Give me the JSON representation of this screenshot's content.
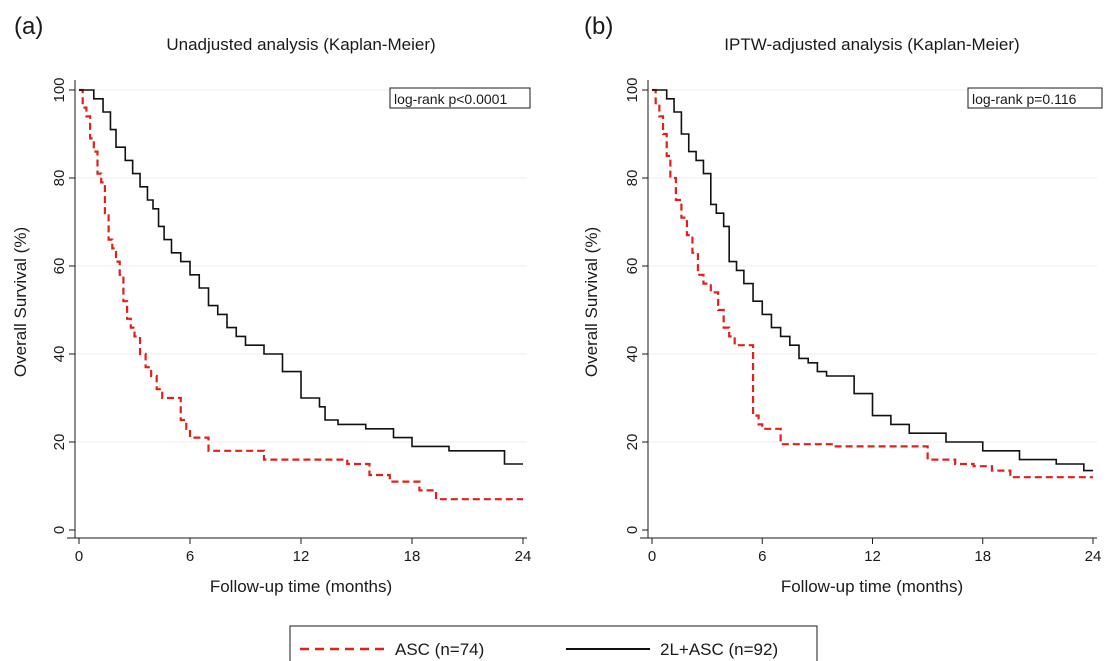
{
  "legend": {
    "items": [
      {
        "label": "ASC (n=74)",
        "color": "#e0201b",
        "dash": "dashed"
      },
      {
        "label": "2L+ASC (n=92)",
        "color": "#111111",
        "dash": "solid"
      }
    ]
  },
  "chart_data": [
    {
      "type": "line",
      "panel": "(a)",
      "title": "Unadjusted analysis (Kaplan-Meier)",
      "xlabel": "Follow-up time (months)",
      "ylabel": "Overall Survival (%)",
      "xlim": [
        0,
        24
      ],
      "ylim": [
        0,
        100
      ],
      "xticks": [
        0,
        6,
        12,
        18,
        24
      ],
      "yticks": [
        0,
        20,
        40,
        60,
        80,
        100
      ],
      "grid": true,
      "annotation": "log-rank p<0.0001",
      "series": [
        {
          "name": "ASC (n=74)",
          "color": "#e0201b",
          "step": true,
          "x": [
            0,
            0.2,
            0.4,
            0.6,
            0.8,
            1.0,
            1.2,
            1.4,
            1.6,
            1.8,
            2.0,
            2.2,
            2.4,
            2.6,
            2.8,
            3.0,
            3.3,
            3.6,
            3.9,
            4.2,
            4.5,
            5.0,
            5.5,
            5.8,
            6.0,
            7.0,
            10.0,
            14.5,
            15.7,
            16.8,
            18.4,
            19.3,
            24
          ],
          "y": [
            100,
            96,
            94,
            89,
            86,
            81,
            79,
            72,
            66,
            64,
            61,
            58,
            52,
            48,
            46,
            44,
            40,
            37,
            35,
            32,
            30,
            30,
            25,
            23,
            21,
            18,
            16,
            15,
            12.5,
            11,
            9,
            7,
            7
          ]
        },
        {
          "name": "2L+ASC (n=92)",
          "color": "#111111",
          "step": true,
          "x": [
            0,
            0.8,
            1.3,
            1.7,
            2.0,
            2.5,
            2.9,
            3.3,
            3.7,
            4.0,
            4.3,
            4.6,
            5.0,
            5.5,
            6.0,
            6.5,
            7.0,
            7.5,
            8.0,
            8.5,
            9.0,
            10.0,
            11.0,
            12.0,
            13.0,
            13.3,
            14.0,
            15.5,
            17.0,
            18.0,
            20.0,
            23.0,
            24
          ],
          "y": [
            100,
            98,
            95,
            91,
            87,
            84,
            81,
            78,
            75,
            73,
            69,
            66,
            63,
            61,
            58,
            55,
            51,
            49,
            46,
            44,
            42,
            40,
            36,
            30,
            28,
            25,
            24,
            23,
            21,
            19,
            18,
            15,
            15
          ]
        }
      ]
    },
    {
      "type": "line",
      "panel": "(b)",
      "title": "IPTW-adjusted analysis (Kaplan-Meier)",
      "xlabel": "Follow-up time (months)",
      "ylabel": "Overall Survival (%)",
      "xlim": [
        0,
        24
      ],
      "ylim": [
        0,
        100
      ],
      "xticks": [
        0,
        6,
        12,
        18,
        24
      ],
      "yticks": [
        0,
        20,
        40,
        60,
        80,
        100
      ],
      "grid": true,
      "annotation": "log-rank p=0.116",
      "series": [
        {
          "name": "ASC (n=74)",
          "color": "#e0201b",
          "step": true,
          "x": [
            0,
            0.2,
            0.4,
            0.6,
            0.8,
            1.0,
            1.3,
            1.6,
            1.9,
            2.2,
            2.5,
            2.8,
            3.2,
            3.6,
            3.9,
            4.2,
            4.5,
            5.3,
            5.5,
            5.8,
            6.0,
            7.0,
            10.0,
            15.0,
            16.5,
            17.5,
            18.5,
            19.5,
            24
          ],
          "y": [
            100,
            97,
            94,
            90,
            85,
            80,
            75,
            71,
            67,
            63,
            58,
            56,
            54,
            50,
            46,
            44,
            42,
            42,
            26,
            24,
            23,
            19.5,
            19,
            16,
            15,
            14.5,
            13.5,
            12,
            12
          ]
        },
        {
          "name": "2L+ASC (n=92)",
          "color": "#111111",
          "step": true,
          "x": [
            0,
            0.8,
            1.2,
            1.6,
            2.0,
            2.4,
            2.8,
            3.2,
            3.5,
            3.9,
            4.2,
            4.6,
            5.0,
            5.5,
            6.0,
            6.5,
            7.0,
            7.5,
            8.0,
            8.5,
            9.0,
            9.5,
            11.0,
            12.0,
            13.0,
            14.0,
            16.0,
            18.0,
            20.0,
            22.0,
            23.5,
            24
          ],
          "y": [
            100,
            98,
            95,
            90,
            86,
            84,
            81,
            74,
            72,
            69,
            61,
            59,
            56,
            52,
            49,
            46,
            44,
            42,
            39,
            38,
            36,
            35,
            31,
            26,
            24,
            22,
            20,
            18,
            16,
            15,
            13.5,
            13.5
          ]
        }
      ]
    }
  ]
}
